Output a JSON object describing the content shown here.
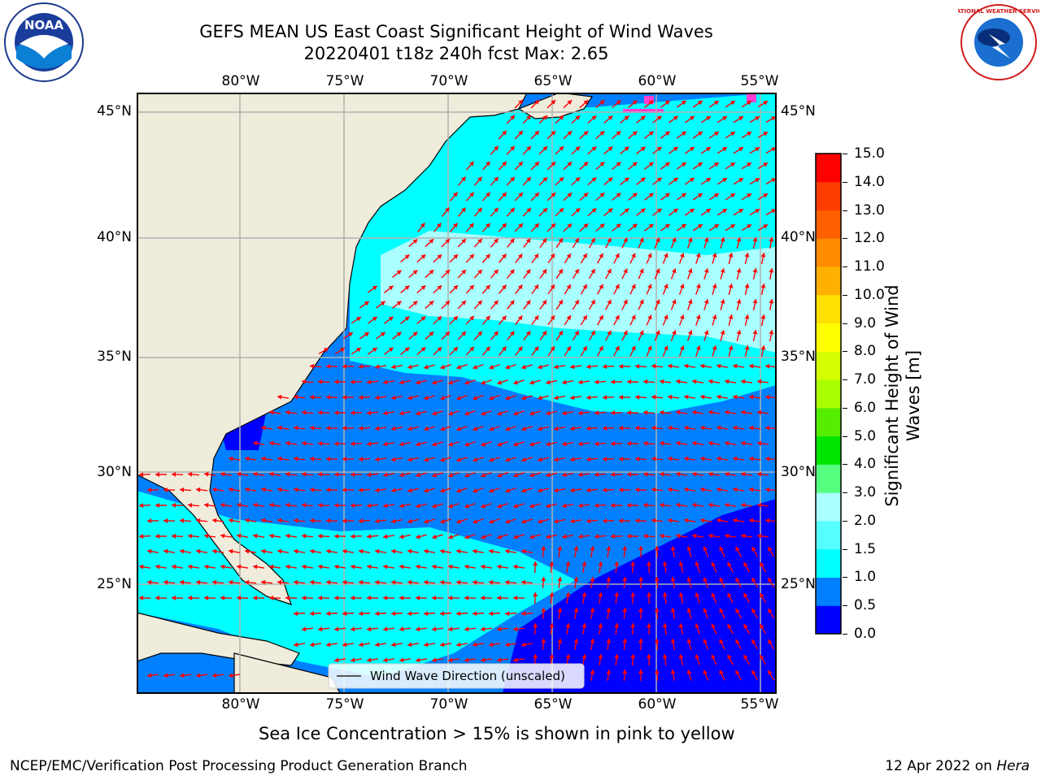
{
  "header": {
    "title_line1": "GEFS MEAN US East Coast Significant Height of Wind Waves",
    "title_line2": "20220401 t18z 240h fcst   Max: 2.65"
  },
  "logos": {
    "left": {
      "name": "noaa-logo",
      "text": "NOAA"
    },
    "right": {
      "name": "nws-logo",
      "text": "NATIONAL WEATHER SERVICE"
    }
  },
  "map": {
    "lon_labels": [
      "80°W",
      "75°W",
      "70°W",
      "65°W",
      "60°W",
      "55°W"
    ],
    "lat_labels": [
      "45°N",
      "40°N",
      "35°N",
      "30°N",
      "25°N"
    ],
    "legend_label": "Wind Wave Direction (unscaled)",
    "land_color": "#efecdc",
    "arrow_color": "#ff0000"
  },
  "colorbar": {
    "title": "Significant Height of Wind Waves [m]",
    "ticks": [
      "0.0",
      "0.5",
      "1.0",
      "1.5",
      "2.0",
      "3.0",
      "4.0",
      "5.0",
      "6.0",
      "7.0",
      "8.0",
      "9.0",
      "10.0",
      "11.0",
      "12.0",
      "13.0",
      "14.0",
      "15.0"
    ],
    "colors": [
      "#0000ff",
      "#0080ff",
      "#00ffff",
      "#55ffff",
      "#aaffff",
      "#55ff80",
      "#00e600",
      "#55ee00",
      "#aaff00",
      "#d4ff00",
      "#ffff00",
      "#ffe000",
      "#ffb000",
      "#ff8c00",
      "#ff6000",
      "#ff3c00",
      "#ff0000"
    ]
  },
  "note": "Sea Ice Concentration > 15% is shown in pink to yellow",
  "footer": {
    "left": "NCEP/EMC/Verification Post Processing Product Generation Branch",
    "right_date": "12 Apr 2022 on ",
    "right_host": "Hera"
  }
}
